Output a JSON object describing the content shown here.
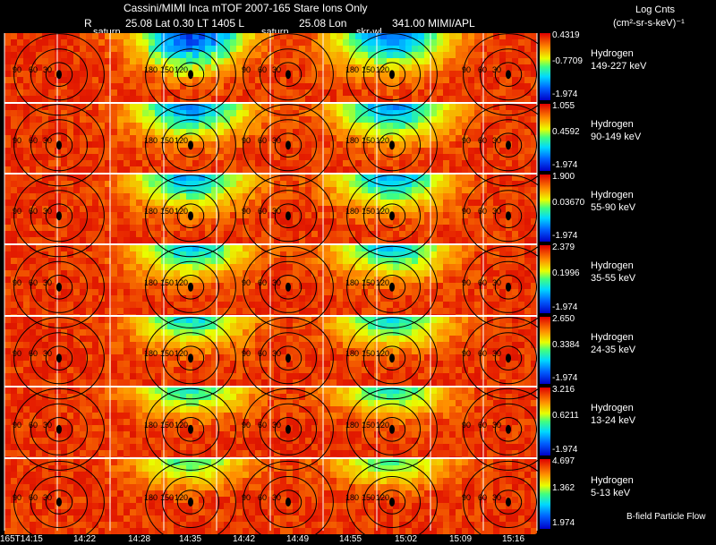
{
  "header": {
    "title": "Cassini/MIMI Inca mTOF  2007-165   Stare    Ions Only",
    "line2_r": "R",
    "line2_rval": "25.08 Lat 0.30 LT 1405 L",
    "line2_l": "25.08 Lon",
    "line2_lon": "341.00   MIMI/APL",
    "saturn1": "saturn",
    "saturn2": "saturn",
    "skrwl": "skr-wl",
    "log_cnts": "Log Cnts",
    "units": "(cm²-sr-s-keV)⁻¹"
  },
  "footer": {
    "bfield": "B-field Particle Flow"
  },
  "chart_data": {
    "type": "heatmap",
    "species": "Hydrogen",
    "rows": [
      {
        "energy": "149-227 keV",
        "cmax": "0.4319",
        "cmid": "-0.7709",
        "cmin": "-1.974"
      },
      {
        "energy": "90-149 keV",
        "cmax": "1.055",
        "cmid": "0.4592",
        "cmin": "-1.974"
      },
      {
        "energy": "55-90 keV",
        "cmax": "1.900",
        "cmid": "0.03670",
        "cmin": "-1.974"
      },
      {
        "energy": "35-55 keV",
        "cmax": "2.379",
        "cmid": "0.1996",
        "cmin": "-1.974"
      },
      {
        "energy": "24-35 keV",
        "cmax": "2.650",
        "cmid": "0.3384",
        "cmin": "-1.974"
      },
      {
        "energy": "13-24 keV",
        "cmax": "3.216",
        "cmid": "0.6211",
        "cmin": "-1.974"
      },
      {
        "energy": "5-13 keV",
        "cmax": "4.697",
        "cmid": "1.362",
        "cmin": "1.974"
      }
    ],
    "time_ticks": [
      "165T14:15",
      "14:22",
      "14:28",
      "14:35",
      "14:42",
      "14:49",
      "14:55",
      "15:02",
      "15:09",
      "15:16"
    ],
    "contour_labels": [
      "30",
      "60",
      "90",
      "120",
      "150",
      "180"
    ]
  }
}
